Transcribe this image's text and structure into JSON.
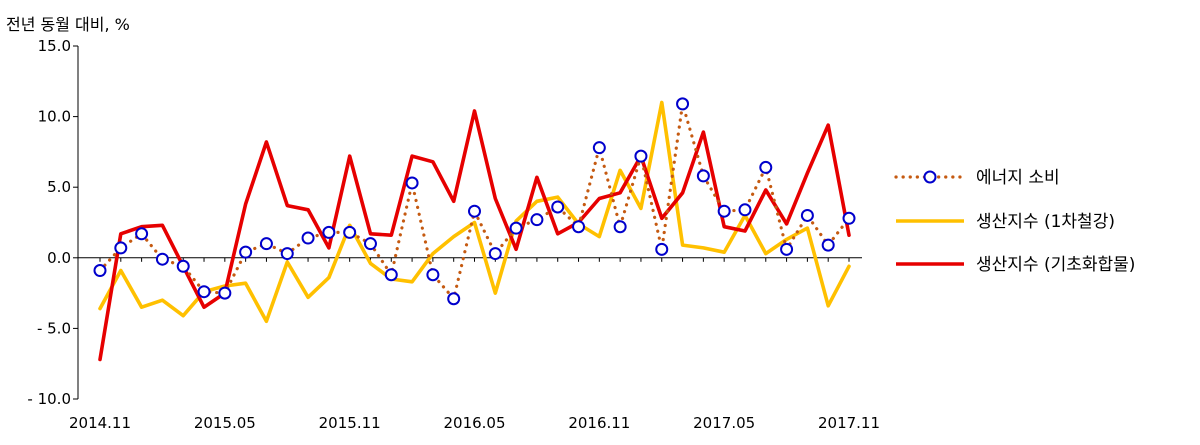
{
  "chart_data": {
    "type": "line",
    "ylabel": "전년 동월 대비, %",
    "ylim": [
      -10,
      15
    ],
    "yticks": [
      15,
      10,
      5,
      0,
      -5,
      -10
    ],
    "ytick_labels": [
      "15.0",
      "10.0",
      "5.0",
      "0.0",
      "- 5.0",
      "- 10.0"
    ],
    "xtick_labels": [
      "2014.11",
      "2015.05",
      "2015.11",
      "2016.05",
      "2016.11",
      "2017.05",
      "2017.11"
    ],
    "xtick_indices": [
      0,
      6,
      12,
      18,
      24,
      30,
      36
    ],
    "x": [
      "2014.11",
      "2014.12",
      "2015.01",
      "2015.02",
      "2015.03",
      "2015.04",
      "2015.05",
      "2015.06",
      "2015.07",
      "2015.08",
      "2015.09",
      "2015.10",
      "2015.11",
      "2015.12",
      "2016.01",
      "2016.02",
      "2016.03",
      "2016.04",
      "2016.05",
      "2016.06",
      "2016.07",
      "2016.08",
      "2016.09",
      "2016.10",
      "2016.11",
      "2016.12",
      "2017.01",
      "2017.02",
      "2017.03",
      "2017.04",
      "2017.05",
      "2017.06",
      "2017.07",
      "2017.08",
      "2017.09",
      "2017.10",
      "2017.11"
    ],
    "grid": false,
    "legend_position": "right",
    "series": [
      {
        "name": "에너지 소비",
        "style": "dotted-circle",
        "color": "#c55a11",
        "marker_color": "#0000cc",
        "values": [
          -0.9,
          0.7,
          1.7,
          -0.1,
          -0.6,
          -2.4,
          -2.5,
          0.4,
          1.0,
          0.3,
          1.4,
          1.8,
          1.8,
          1.0,
          -1.2,
          5.3,
          -1.2,
          -2.9,
          3.3,
          0.3,
          2.1,
          2.7,
          3.6,
          2.2,
          7.8,
          2.2,
          7.2,
          0.6,
          10.9,
          5.8,
          3.3,
          3.4,
          6.4,
          0.6,
          3.0,
          0.9,
          2.8
        ]
      },
      {
        "name": "생산지수 (1차철강)",
        "style": "solid",
        "color": "#ffc000",
        "values": [
          -3.6,
          -0.9,
          -3.5,
          -3.0,
          -4.1,
          -2.4,
          -2.0,
          -1.8,
          -4.5,
          -0.3,
          -2.8,
          -1.4,
          2.3,
          -0.4,
          -1.5,
          -1.7,
          0.3,
          1.5,
          2.5,
          -2.5,
          2.6,
          4.0,
          4.3,
          2.4,
          1.5,
          6.2,
          3.5,
          11.0,
          0.9,
          0.7,
          0.4,
          3.0,
          0.3,
          1.3,
          2.1,
          -3.4,
          -0.6
        ]
      },
      {
        "name": "생산지수 (기초화합물)",
        "style": "solid",
        "color": "#e60000",
        "values": [
          -7.2,
          1.7,
          2.2,
          2.3,
          -0.6,
          -3.5,
          -2.5,
          3.8,
          8.2,
          3.7,
          3.4,
          0.7,
          7.2,
          1.7,
          1.6,
          7.2,
          6.8,
          4.0,
          10.4,
          4.2,
          0.6,
          5.7,
          1.7,
          2.5,
          4.2,
          4.6,
          7.2,
          2.8,
          4.6,
          8.9,
          2.2,
          1.9,
          4.8,
          2.4,
          6.0,
          9.4,
          1.6
        ]
      }
    ]
  }
}
